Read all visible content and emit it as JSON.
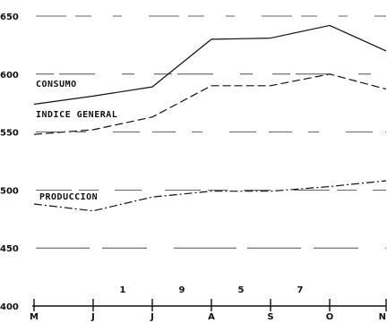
{
  "chart_data": {
    "type": "line",
    "title": "",
    "xlabel": "",
    "ylabel": "",
    "categories": [
      "M",
      "J",
      "J",
      "A",
      "S",
      "O",
      "N"
    ],
    "year_marks": [
      "1",
      "9",
      "5",
      "7"
    ],
    "y_ticks": [
      "650",
      "600",
      "550",
      "500",
      "450",
      "400"
    ],
    "ylim": [
      400,
      650
    ],
    "grid": true,
    "series": [
      {
        "name": "CONSUMO",
        "style": "solid",
        "values": [
          574,
          581,
          589,
          630,
          631,
          642,
          620
        ]
      },
      {
        "name": "INDICE GENERAL",
        "style": "dashed",
        "values": [
          548,
          552,
          563,
          590,
          590,
          600,
          587
        ]
      },
      {
        "name": "PRODUCCION",
        "style": "dashdot",
        "values": [
          488,
          482,
          494,
          499,
          499,
          503,
          508
        ]
      }
    ],
    "colors": {
      "line": "#111111",
      "grid": "#333333",
      "background": "#ffffff"
    }
  }
}
